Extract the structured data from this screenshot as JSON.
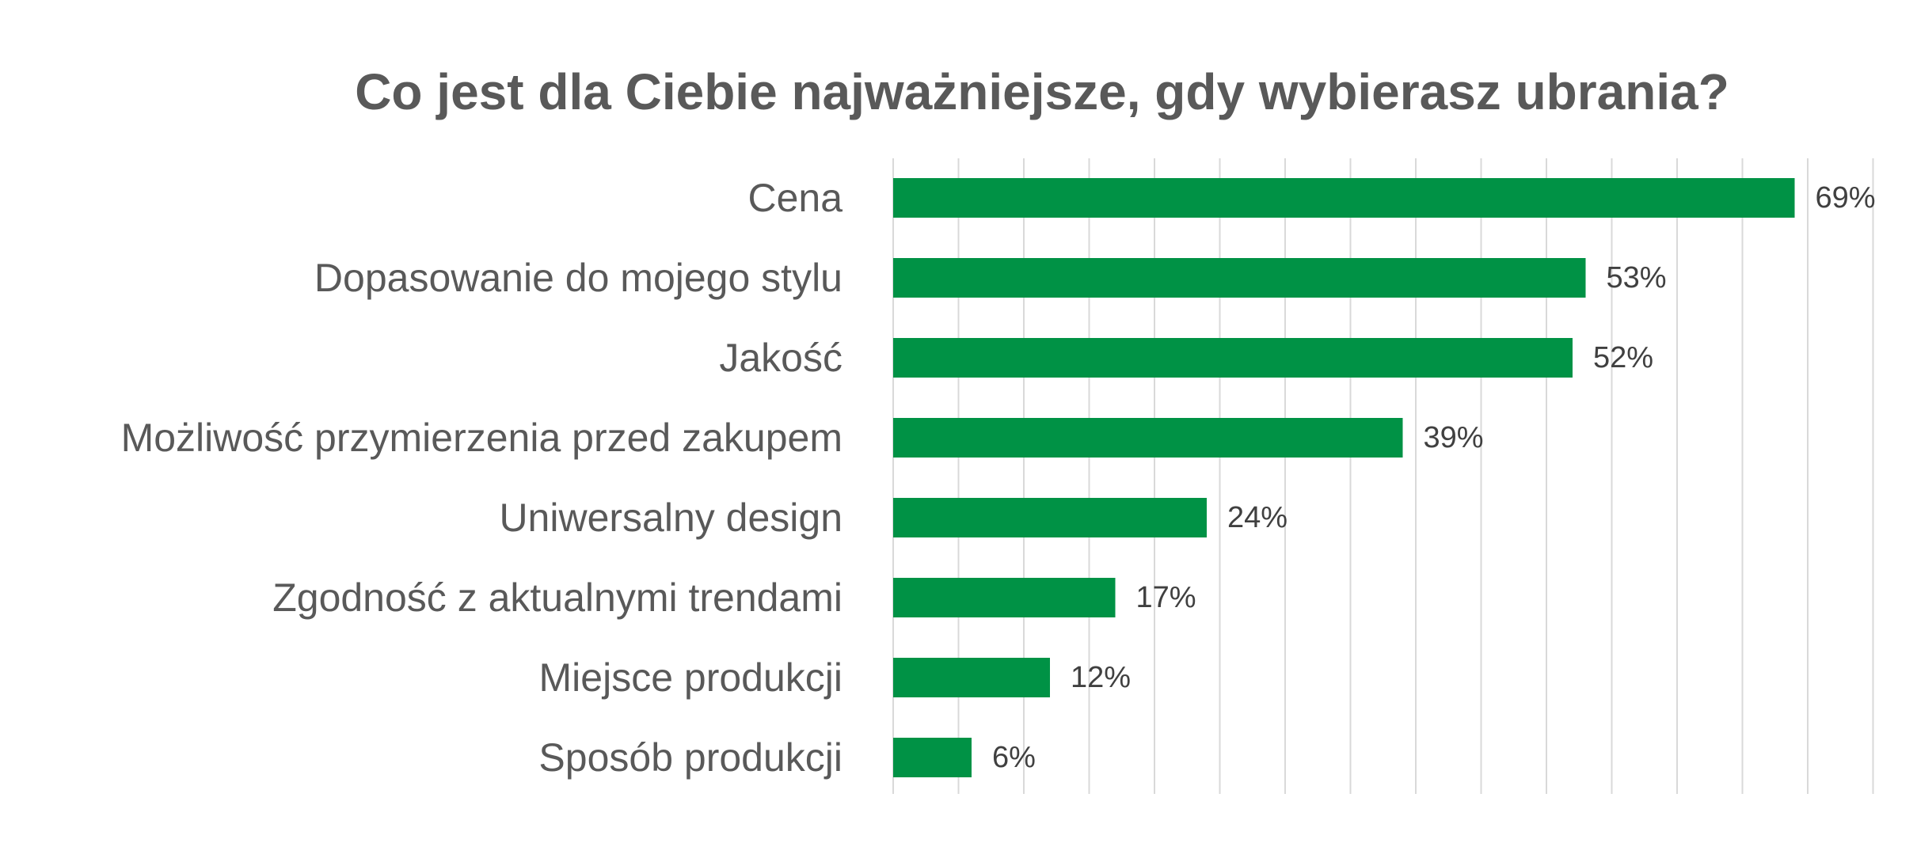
{
  "chart_data": {
    "type": "bar",
    "orientation": "horizontal",
    "title": "Co jest dla Ciebie najważniejsze, gdy wybierasz ubrania?",
    "categories": [
      "Cena",
      "Dopasowanie do mojego stylu",
      "Jakość",
      "Możliwość przymierzenia przed zakupem",
      "Uniwersalny design",
      "Zgodność z aktualnymi trendami",
      "Miejsce produkcji",
      "Sposób produkcji"
    ],
    "values": [
      69,
      53,
      52,
      39,
      24,
      17,
      12,
      6
    ],
    "value_labels": [
      "69%",
      "53%",
      "52%",
      "39%",
      "24%",
      "17%",
      "12%",
      "6%"
    ],
    "unit": "%",
    "xlim": [
      0,
      75
    ],
    "grid": true,
    "grid_step": 5,
    "legend": "none"
  },
  "colors": {
    "bar": "#009245",
    "title": "#595959",
    "category_label": "#595959",
    "value_label": "#404040",
    "grid": "#d9d9d9",
    "background": "#ffffff"
  }
}
